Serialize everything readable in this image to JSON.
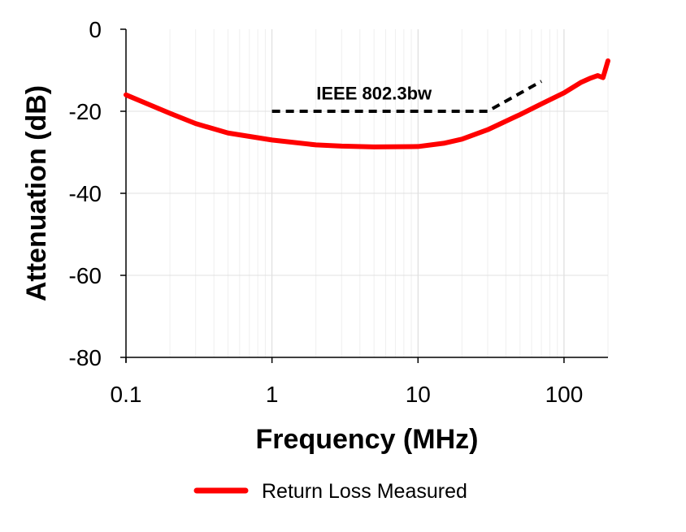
{
  "chart_data": {
    "type": "line",
    "xlabel": "Frequency (MHz)",
    "ylabel": "Attenuation (dB)",
    "xscale": "log",
    "xlim": [
      0.1,
      200
    ],
    "ylim": [
      -80,
      0
    ],
    "xticks": [
      {
        "v": 0.1,
        "label": "0.1"
      },
      {
        "v": 1,
        "label": "1"
      },
      {
        "v": 10,
        "label": "10"
      },
      {
        "v": 100,
        "label": "100"
      }
    ],
    "yticks": [
      {
        "v": 0,
        "label": "0"
      },
      {
        "v": -20,
        "label": "-20"
      },
      {
        "v": -40,
        "label": "-40"
      },
      {
        "v": -60,
        "label": "-60"
      },
      {
        "v": -80,
        "label": "-80"
      }
    ],
    "grid": true,
    "legend_position": "bottom",
    "series": [
      {
        "name": "Return Loss Measured",
        "color": "#ff0000",
        "style": "solid",
        "x": [
          0.1,
          0.2,
          0.3,
          0.5,
          1,
          2,
          3,
          5,
          10,
          15,
          20,
          30,
          50,
          70,
          100,
          130,
          150,
          170,
          185,
          200
        ],
        "y": [
          -16,
          -20.5,
          -23,
          -25.3,
          -27,
          -28.2,
          -28.5,
          -28.7,
          -28.6,
          -27.8,
          -26.8,
          -24.5,
          -20.8,
          -18.2,
          -15.5,
          -13,
          -12,
          -11.3,
          -11.8,
          -7.7
        ]
      },
      {
        "name": "",
        "color": "#000000",
        "style": "dashed",
        "x": [
          1,
          30,
          70
        ],
        "y": [
          -20,
          -20,
          -12.7
        ]
      }
    ],
    "annotations": [
      {
        "text": "IEEE 802.3bw",
        "x": 5,
        "y": -15.5
      }
    ]
  }
}
